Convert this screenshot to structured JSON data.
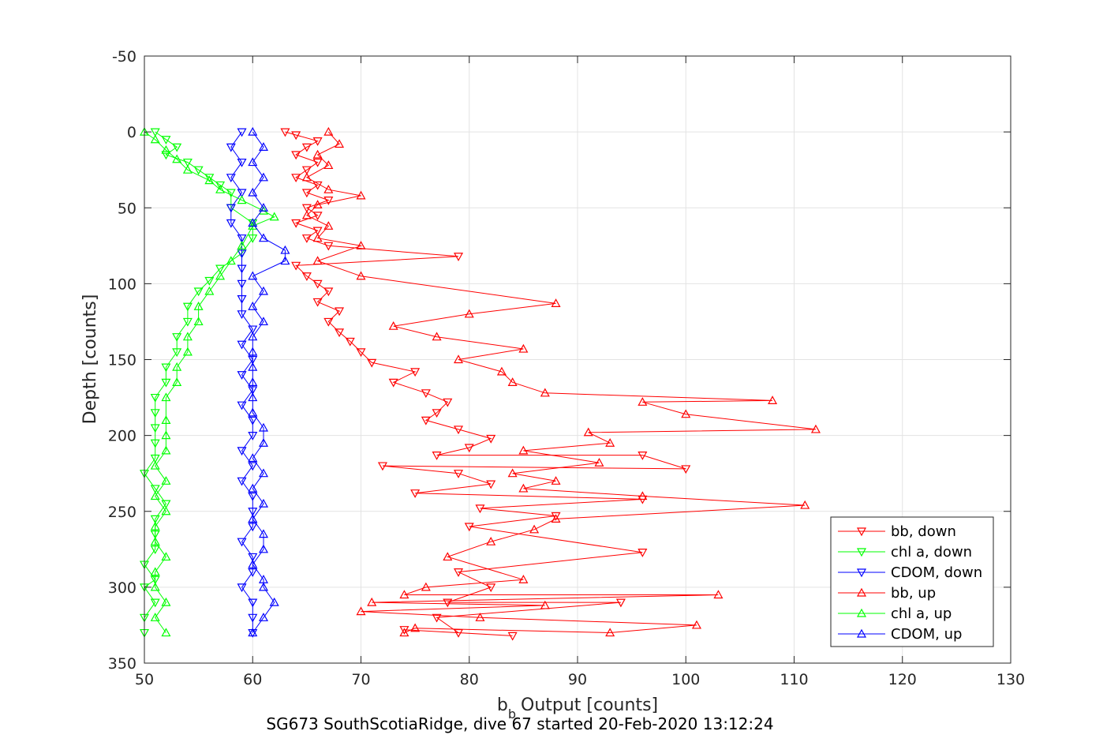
{
  "chart_data": {
    "type": "scatter",
    "title": "",
    "subtitle": "SG673 SouthScotiaRidge, dive 67 started 20-Feb-2020 13:12:24",
    "xlabel": "Output [counts]",
    "xlabel_prefix": "b",
    "xlabel_subscript": "b",
    "ylabel": "Depth [counts]",
    "xlim": [
      50,
      130
    ],
    "ylim": [
      -50,
      350
    ],
    "y_reversed": true,
    "grid": true,
    "legend_position": "bottom-right",
    "x_ticks": [
      "50",
      "60",
      "70",
      "80",
      "90",
      "100",
      "110",
      "120",
      "130"
    ],
    "y_ticks": [
      "-50",
      "0",
      "50",
      "100",
      "150",
      "200",
      "250",
      "300",
      "350"
    ],
    "series": [
      {
        "name": "bb, down",
        "color": "#ff0000",
        "marker": "triangle-down",
        "points": [
          [
            63,
            0
          ],
          [
            64,
            2
          ],
          [
            66,
            6
          ],
          [
            65,
            10
          ],
          [
            64,
            15
          ],
          [
            66,
            20
          ],
          [
            65,
            25
          ],
          [
            64,
            30
          ],
          [
            66,
            35
          ],
          [
            65,
            40
          ],
          [
            67,
            45
          ],
          [
            65,
            50
          ],
          [
            66,
            55
          ],
          [
            64,
            60
          ],
          [
            66,
            65
          ],
          [
            65,
            70
          ],
          [
            67,
            75
          ],
          [
            79,
            82
          ],
          [
            64,
            88
          ],
          [
            65,
            95
          ],
          [
            66,
            100
          ],
          [
            67,
            105
          ],
          [
            66,
            112
          ],
          [
            68,
            118
          ],
          [
            67,
            125
          ],
          [
            68,
            132
          ],
          [
            69,
            138
          ],
          [
            70,
            145
          ],
          [
            71,
            152
          ],
          [
            75,
            158
          ],
          [
            73,
            165
          ],
          [
            76,
            172
          ],
          [
            78,
            178
          ],
          [
            77,
            185
          ],
          [
            76,
            190
          ],
          [
            79,
            196
          ],
          [
            82,
            202
          ],
          [
            80,
            208
          ],
          [
            77,
            213
          ],
          [
            96,
            213
          ],
          [
            100,
            222
          ],
          [
            72,
            220
          ],
          [
            79,
            225
          ],
          [
            82,
            232
          ],
          [
            75,
            238
          ],
          [
            96,
            242
          ],
          [
            81,
            248
          ],
          [
            88,
            253
          ],
          [
            80,
            260
          ],
          [
            96,
            277
          ],
          [
            79,
            290
          ],
          [
            82,
            300
          ],
          [
            78,
            310
          ],
          [
            94,
            310
          ],
          [
            77,
            320
          ],
          [
            79,
            330
          ],
          [
            84,
            332
          ],
          [
            74,
            328
          ]
        ]
      },
      {
        "name": "chl a, down",
        "color": "#00ff00",
        "marker": "triangle-down",
        "points": [
          [
            51,
            0
          ],
          [
            52,
            5
          ],
          [
            53,
            10
          ],
          [
            52,
            15
          ],
          [
            54,
            20
          ],
          [
            55,
            25
          ],
          [
            56,
            30
          ],
          [
            57,
            35
          ],
          [
            58,
            40
          ],
          [
            58,
            50
          ],
          [
            60,
            60
          ],
          [
            60,
            70
          ],
          [
            59,
            80
          ],
          [
            57,
            90
          ],
          [
            56,
            98
          ],
          [
            55,
            105
          ],
          [
            54,
            115
          ],
          [
            54,
            125
          ],
          [
            53,
            135
          ],
          [
            53,
            145
          ],
          [
            52,
            155
          ],
          [
            52,
            165
          ],
          [
            51,
            175
          ],
          [
            51,
            185
          ],
          [
            51,
            195
          ],
          [
            51,
            205
          ],
          [
            51,
            215
          ],
          [
            50,
            225
          ],
          [
            51,
            235
          ],
          [
            52,
            245
          ],
          [
            51,
            255
          ],
          [
            51,
            265
          ],
          [
            51,
            275
          ],
          [
            50,
            285
          ],
          [
            51,
            295
          ],
          [
            50,
            300
          ],
          [
            51,
            310
          ],
          [
            50,
            320
          ],
          [
            50,
            330
          ]
        ]
      },
      {
        "name": "CDOM, down",
        "color": "#0000ff",
        "marker": "triangle-down",
        "points": [
          [
            59,
            0
          ],
          [
            58,
            10
          ],
          [
            59,
            20
          ],
          [
            58,
            30
          ],
          [
            59,
            40
          ],
          [
            58,
            50
          ],
          [
            58,
            60
          ],
          [
            59,
            70
          ],
          [
            59,
            80
          ],
          [
            59,
            90
          ],
          [
            59,
            100
          ],
          [
            59,
            110
          ],
          [
            59,
            120
          ],
          [
            60,
            130
          ],
          [
            59,
            140
          ],
          [
            60,
            150
          ],
          [
            59,
            160
          ],
          [
            60,
            170
          ],
          [
            59,
            180
          ],
          [
            60,
            190
          ],
          [
            60,
            200
          ],
          [
            59,
            210
          ],
          [
            60,
            220
          ],
          [
            59,
            230
          ],
          [
            60,
            240
          ],
          [
            60,
            250
          ],
          [
            60,
            260
          ],
          [
            59,
            270
          ],
          [
            60,
            280
          ],
          [
            60,
            290
          ],
          [
            59,
            300
          ],
          [
            60,
            310
          ],
          [
            60,
            320
          ],
          [
            60,
            330
          ]
        ]
      },
      {
        "name": "bb, up",
        "color": "#ff0000",
        "marker": "triangle-up",
        "points": [
          [
            67,
            0
          ],
          [
            68,
            8
          ],
          [
            66,
            15
          ],
          [
            67,
            22
          ],
          [
            65,
            30
          ],
          [
            67,
            38
          ],
          [
            70,
            42
          ],
          [
            66,
            48
          ],
          [
            65,
            55
          ],
          [
            67,
            62
          ],
          [
            66,
            70
          ],
          [
            70,
            75
          ],
          [
            66,
            85
          ],
          [
            70,
            95
          ],
          [
            88,
            113
          ],
          [
            80,
            120
          ],
          [
            73,
            128
          ],
          [
            77,
            135
          ],
          [
            85,
            143
          ],
          [
            79,
            150
          ],
          [
            83,
            158
          ],
          [
            84,
            165
          ],
          [
            87,
            172
          ],
          [
            108,
            177
          ],
          [
            96,
            178
          ],
          [
            100,
            186
          ],
          [
            112,
            196
          ],
          [
            91,
            198
          ],
          [
            93,
            205
          ],
          [
            85,
            210
          ],
          [
            92,
            218
          ],
          [
            84,
            225
          ],
          [
            88,
            230
          ],
          [
            85,
            235
          ],
          [
            96,
            240
          ],
          [
            111,
            246
          ],
          [
            88,
            255
          ],
          [
            86,
            262
          ],
          [
            82,
            270
          ],
          [
            78,
            280
          ],
          [
            85,
            295
          ],
          [
            76,
            300
          ],
          [
            74,
            305
          ],
          [
            103,
            305
          ],
          [
            71,
            310
          ],
          [
            87,
            312
          ],
          [
            70,
            316
          ],
          [
            81,
            320
          ],
          [
            101,
            325
          ],
          [
            93,
            330
          ],
          [
            75,
            327
          ],
          [
            74,
            330
          ]
        ]
      },
      {
        "name": "chl a, up",
        "color": "#00ff00",
        "marker": "triangle-up",
        "points": [
          [
            50,
            0
          ],
          [
            51,
            5
          ],
          [
            52,
            12
          ],
          [
            53,
            18
          ],
          [
            54,
            25
          ],
          [
            56,
            32
          ],
          [
            57,
            38
          ],
          [
            59,
            45
          ],
          [
            61,
            52
          ],
          [
            62,
            56
          ],
          [
            60,
            62
          ],
          [
            59,
            75
          ],
          [
            58,
            85
          ],
          [
            57,
            95
          ],
          [
            56,
            105
          ],
          [
            55,
            115
          ],
          [
            55,
            125
          ],
          [
            54,
            135
          ],
          [
            54,
            145
          ],
          [
            53,
            155
          ],
          [
            53,
            165
          ],
          [
            52,
            175
          ],
          [
            52,
            190
          ],
          [
            52,
            200
          ],
          [
            52,
            210
          ],
          [
            51,
            220
          ],
          [
            52,
            230
          ],
          [
            51,
            240
          ],
          [
            52,
            250
          ],
          [
            51,
            260
          ],
          [
            51,
            270
          ],
          [
            52,
            280
          ],
          [
            51,
            290
          ],
          [
            51,
            300
          ],
          [
            52,
            310
          ],
          [
            51,
            320
          ],
          [
            52,
            330
          ]
        ]
      },
      {
        "name": "CDOM, up",
        "color": "#0000ff",
        "marker": "triangle-up",
        "points": [
          [
            60,
            0
          ],
          [
            61,
            10
          ],
          [
            60,
            20
          ],
          [
            61,
            30
          ],
          [
            60,
            40
          ],
          [
            61,
            50
          ],
          [
            60,
            60
          ],
          [
            61,
            70
          ],
          [
            63,
            78
          ],
          [
            63,
            85
          ],
          [
            60,
            95
          ],
          [
            61,
            105
          ],
          [
            60,
            115
          ],
          [
            61,
            125
          ],
          [
            60,
            135
          ],
          [
            60,
            145
          ],
          [
            60,
            155
          ],
          [
            60,
            165
          ],
          [
            60,
            175
          ],
          [
            60,
            185
          ],
          [
            61,
            195
          ],
          [
            61,
            205
          ],
          [
            60,
            215
          ],
          [
            61,
            225
          ],
          [
            60,
            235
          ],
          [
            61,
            245
          ],
          [
            60,
            255
          ],
          [
            61,
            265
          ],
          [
            61,
            275
          ],
          [
            60,
            285
          ],
          [
            61,
            295
          ],
          [
            61,
            300
          ],
          [
            62,
            310
          ],
          [
            61,
            320
          ],
          [
            60,
            330
          ]
        ]
      }
    ]
  }
}
